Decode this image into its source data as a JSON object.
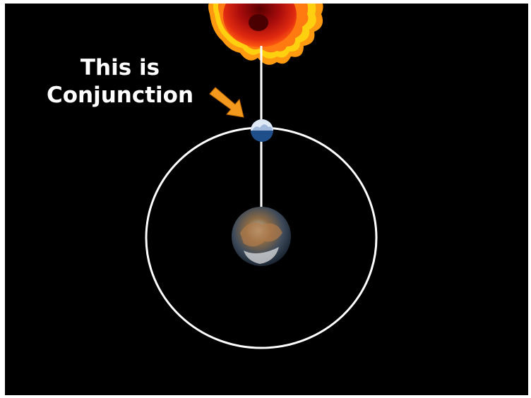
{
  "annotation": {
    "lines": [
      "This is",
      "Conjunction"
    ]
  }
}
